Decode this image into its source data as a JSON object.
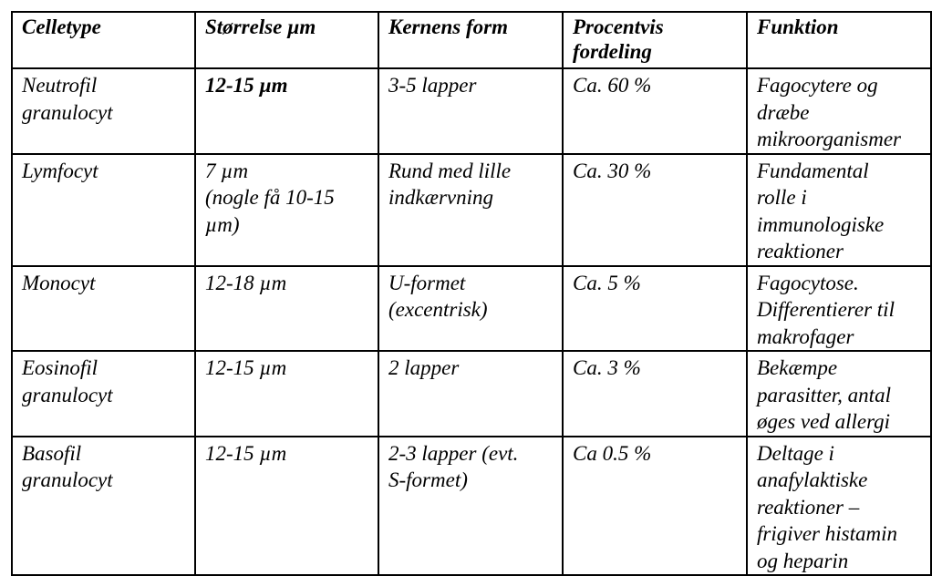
{
  "table": {
    "headers": [
      "Celletype",
      "Størrelse µm",
      "Kernens form",
      "Procentvis\nfordeling",
      "Funktion"
    ],
    "rows": [
      [
        "Neutrofil\ngranulocyt",
        "12-15 µm",
        "3-5 lapper",
        "Ca. 60 %",
        "Fagocytere og\ndræbe\nmikroorganismer"
      ],
      [
        "Lymfocyt",
        "7 µm\n(nogle få 10-15\nµm)",
        "Rund med lille\nindkærvning",
        "Ca. 30 %",
        "Fundamental\nrolle i\nimmunologiske\nreaktioner"
      ],
      [
        "Monocyt",
        "12-18 µm",
        "U-formet\n(excentrisk)",
        "Ca. 5 %",
        "Fagocytose.\nDifferentierer til\nmakrofager"
      ],
      [
        "Eosinofil\ngranulocyt",
        "12-15 µm",
        "2 lapper",
        "Ca. 3 %",
        "Bekæmpe\nparasitter, antal\nøges ved allergi"
      ],
      [
        "Basofil\ngranulocyt",
        "12-15 µm",
        "2-3 lapper (evt.\nS-formet)",
        "Ca 0.5 %",
        "Deltage i\nanafylaktiske\nreaktioner –\nfrigiver histamin\nog heparin"
      ]
    ]
  }
}
